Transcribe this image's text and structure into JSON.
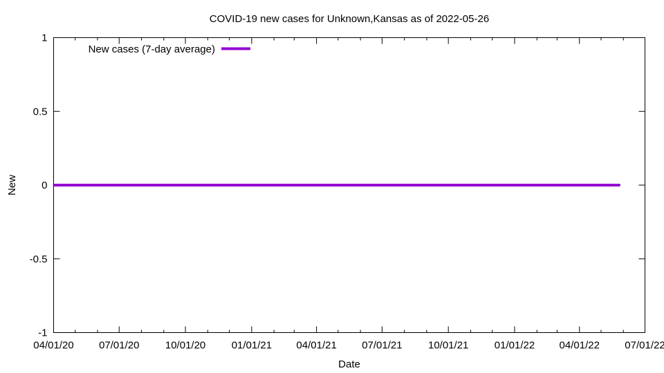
{
  "chart_data": {
    "type": "line",
    "title": "COVID-19 new cases for Unknown,Kansas as of 2022-05-26",
    "xlabel": "Date",
    "ylabel": "New",
    "xlim": [
      "2020-04-01",
      "2022-07-01"
    ],
    "ylim": [
      -1,
      1
    ],
    "y_ticks": [
      -1,
      -0.5,
      0,
      0.5,
      1
    ],
    "y_tick_labels": [
      "-1",
      "-0.5",
      "0",
      "0.5",
      "1"
    ],
    "x_ticks": [
      "2020-04-01",
      "2020-07-01",
      "2020-10-01",
      "2021-01-01",
      "2021-04-01",
      "2021-07-01",
      "2021-10-01",
      "2022-01-01",
      "2022-04-01",
      "2022-07-01"
    ],
    "x_tick_labels": [
      "04/01/20",
      "07/01/20",
      "10/01/20",
      "01/01/21",
      "04/01/21",
      "07/01/21",
      "10/01/21",
      "01/01/22",
      "04/01/22",
      "07/01/22"
    ],
    "x_minor_ticks": [
      "2020-05-01",
      "2020-06-01",
      "2020-08-01",
      "2020-09-01",
      "2020-11-01",
      "2020-12-01",
      "2021-02-01",
      "2021-03-01",
      "2021-05-01",
      "2021-06-01",
      "2021-08-01",
      "2021-09-01",
      "2021-11-01",
      "2021-12-01",
      "2022-02-01",
      "2022-03-01",
      "2022-05-01",
      "2022-06-01"
    ],
    "grid": false,
    "legend_position": "top-left",
    "series": [
      {
        "name": "New cases (7-day average)",
        "color": "#9400d3",
        "x": [
          "2020-04-03",
          "2022-05-26"
        ],
        "y": [
          0,
          0
        ]
      }
    ]
  }
}
